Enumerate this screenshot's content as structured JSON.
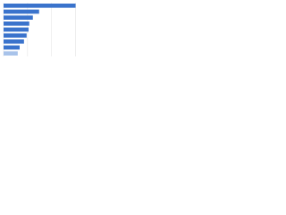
{
  "chart_data": {
    "type": "bar",
    "orientation": "horizontal",
    "categories": [
      null,
      null,
      null,
      null,
      null,
      null,
      null,
      null,
      null
    ],
    "values": [
      30,
      14.8,
      12.2,
      10.7,
      10.4,
      9.6,
      8.5,
      6.7,
      5.9
    ],
    "colors": [
      "#3a73cc",
      "#3a73cc",
      "#3a73cc",
      "#3a73cc",
      "#3a73cc",
      "#3a73cc",
      "#3a73cc",
      "#3a73cc",
      "#a8c3ea"
    ],
    "xlim": [
      0,
      35
    ],
    "xticks": [
      0,
      10,
      20,
      30
    ],
    "grid": true
  }
}
